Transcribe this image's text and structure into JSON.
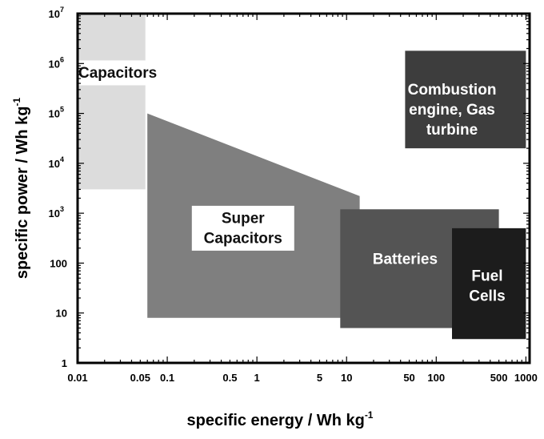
{
  "chart_data": {
    "type": "area",
    "title": "",
    "xlabel": "specific energy  /  Wh kg",
    "xlabel_sup": "-1",
    "ylabel": "specific power  /  Wh kg",
    "ylabel_sup": "-1",
    "x_scale": "log",
    "y_scale": "log",
    "xlim": [
      0.01,
      1100
    ],
    "ylim": [
      1,
      10000000
    ],
    "grid": false,
    "x_ticks": [
      {
        "value": 0.01,
        "label": "0.01"
      },
      {
        "value": 0.05,
        "label": "0.05"
      },
      {
        "value": 0.1,
        "label": "0.1"
      },
      {
        "value": 0.5,
        "label": "0.5"
      },
      {
        "value": 1,
        "label": "1"
      },
      {
        "value": 5,
        "label": "5"
      },
      {
        "value": 10,
        "label": "10"
      },
      {
        "value": 50,
        "label": "50"
      },
      {
        "value": 100,
        "label": "100"
      },
      {
        "value": 500,
        "label": "500"
      },
      {
        "value": 1000,
        "label": "1000"
      }
    ],
    "y_ticks": [
      {
        "value": 1,
        "label": "1"
      },
      {
        "value": 10,
        "label": "10"
      },
      {
        "value": 100,
        "label": "100"
      },
      {
        "value": 1000,
        "label": "10",
        "sup": "3"
      },
      {
        "value": 10000,
        "label": "10",
        "sup": "4"
      },
      {
        "value": 100000,
        "label": "10",
        "sup": "5"
      },
      {
        "value": 1000000,
        "label": "10",
        "sup": "6"
      },
      {
        "value": 10000000,
        "label": "10",
        "sup": "7"
      }
    ],
    "regions": [
      {
        "name": "Capacitors",
        "label_lines": [
          "Capacitors"
        ],
        "label_at": [
          0.028,
          650000
        ],
        "fill": "#dcdcdc",
        "text_color": "#111111",
        "label_box": true,
        "polygon": [
          [
            0.01,
            3000
          ],
          [
            0.01,
            10000000
          ],
          [
            0.057,
            10000000
          ],
          [
            0.057,
            3000
          ]
        ]
      },
      {
        "name": "Super Capacitors",
        "label_lines": [
          "Super",
          "Capacitors"
        ],
        "label_at": [
          0.7,
          500
        ],
        "fill": "#7f7f7f",
        "text_color": "#111111",
        "label_box": true,
        "polygon": [
          [
            0.06,
            100000
          ],
          [
            14,
            2200
          ],
          [
            14,
            8
          ],
          [
            0.06,
            8
          ]
        ]
      },
      {
        "name": "Batteries",
        "label_lines": [
          "Batteries"
        ],
        "label_at": [
          45,
          120
        ],
        "fill": "#545454",
        "text_color": "#ffffff",
        "label_box": false,
        "polygon": [
          [
            8.5,
            5
          ],
          [
            8.5,
            1200
          ],
          [
            500,
            1200
          ],
          [
            500,
            5
          ]
        ]
      },
      {
        "name": "Fuel Cells",
        "label_lines": [
          "Fuel",
          "Cells"
        ],
        "label_at": [
          370,
          35
        ],
        "fill": "#1c1c1c",
        "text_color": "#ffffff",
        "label_box": false,
        "polygon": [
          [
            150,
            3
          ],
          [
            150,
            500
          ],
          [
            1000,
            500
          ],
          [
            1000,
            3
          ]
        ]
      },
      {
        "name": "Combustion engine, Gas turbine",
        "label_lines": [
          "Combustion",
          "engine, Gas",
          "turbine"
        ],
        "label_at": [
          150,
          120000
        ],
        "fill": "#3d3d3d",
        "text_color": "#ffffff",
        "label_box": false,
        "polygon": [
          [
            45,
            20000
          ],
          [
            45,
            1800000
          ],
          [
            1000,
            1800000
          ],
          [
            1000,
            20000
          ]
        ]
      }
    ]
  }
}
